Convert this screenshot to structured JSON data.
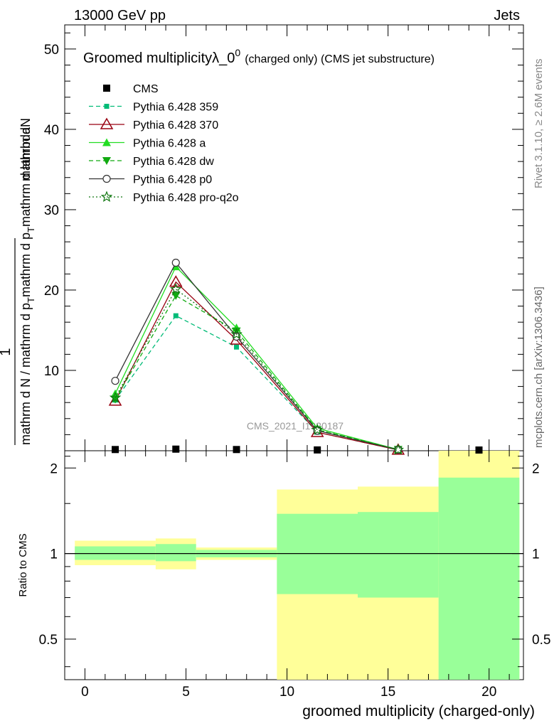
{
  "header": {
    "energy_label": "13000 GeV pp",
    "process_label": "Jets"
  },
  "side": {
    "rivet_label": "Rivet 3.1.10, ≥ 2.6M events",
    "mcplots_label": "mcplots.cern.ch [arXiv:1306.3436]"
  },
  "watermark": "CMS_2021_I1920187",
  "chart_data": [
    {
      "type": "line",
      "title_main": "Groomed multiplicityλ_0",
      "title_sup": "0",
      "title_sub": "(charged only) (CMS jet substructure)",
      "ylabel_top": "mathrm dN",
      "ylabel_bottom": "mathrm d N / mathrm d p",
      "ylabel_lines": [
        "1",
        "mathrm d N / mathrm d p_T mathrm d p_T mathrm d lambda",
        "mathrm dN"
      ],
      "ylabel_full_a": "mathrm d N / mathrm d p",
      "ylabel_full_b": "mathrm d p",
      "ylabel_full_c": "mathrm d lambda",
      "ylabel_sub": "T",
      "xlim": [
        -1,
        21.7
      ],
      "ylim": [
        0,
        53
      ],
      "yticks": [
        10,
        20,
        30,
        40,
        50
      ],
      "legend_position": "top-left",
      "series": [
        {
          "name": "CMS",
          "color": "#000000",
          "marker": "square",
          "line": "none",
          "x": [
            1.5,
            4.5,
            7.5,
            11.5,
            15.5,
            19.5
          ],
          "y": [
            0.15,
            0.2,
            0.15,
            0.1,
            0.05,
            0.02
          ]
        },
        {
          "name": "Pythia 6.428 359",
          "color": "#00bb77",
          "marker": "small-square",
          "line": "dashed",
          "x": [
            1.5,
            4.5,
            7.5,
            11.5,
            15.5
          ],
          "y": [
            6.3,
            16.8,
            12.9,
            2.3,
            0.1
          ]
        },
        {
          "name": "Pythia 6.428 370",
          "color": "#990011",
          "marker": "open-triangle",
          "line": "solid",
          "x": [
            1.5,
            4.5,
            7.5,
            11.5,
            15.5
          ],
          "y": [
            6.2,
            21.0,
            13.8,
            2.3,
            0.1
          ]
        },
        {
          "name": "Pythia 6.428 a",
          "color": "#22dd22",
          "marker": "triangle",
          "line": "solid",
          "x": [
            1.5,
            4.5,
            7.5,
            11.5,
            15.5
          ],
          "y": [
            7.1,
            22.9,
            15.3,
            2.8,
            0.15
          ]
        },
        {
          "name": "Pythia 6.428 dw",
          "color": "#11aa11",
          "marker": "triangle-down",
          "line": "dashed",
          "x": [
            1.5,
            4.5,
            7.5,
            11.5,
            15.5
          ],
          "y": [
            6.4,
            19.3,
            14.9,
            2.6,
            0.15
          ]
        },
        {
          "name": "Pythia 6.428 p0",
          "color": "#333333",
          "marker": "open-circle",
          "line": "solid",
          "x": [
            1.5,
            4.5,
            7.5,
            11.5,
            15.5
          ],
          "y": [
            8.7,
            23.4,
            14.2,
            2.5,
            0.12
          ]
        },
        {
          "name": "Pythia 6.428 pro-q2o",
          "color": "#117711",
          "marker": "star",
          "line": "dotted",
          "x": [
            1.5,
            4.5,
            7.5,
            11.5,
            15.5
          ],
          "y": [
            6.6,
            20.1,
            14.5,
            2.6,
            0.12
          ]
        }
      ]
    },
    {
      "type": "area",
      "ylabel": "Ratio to CMS",
      "xlabel": "groomed multiplicity (charged-only)",
      "xlim": [
        -1,
        21.7
      ],
      "ylim": [
        0.36,
        2.3
      ],
      "yscale": "log",
      "xticks": [
        0,
        5,
        10,
        15,
        20
      ],
      "yticks": [
        0.5,
        1,
        2
      ],
      "reference_line": 1,
      "bands": [
        {
          "x": [
            -0.5,
            3.5
          ],
          "green": [
            0.95,
            1.06
          ],
          "yellow": [
            0.91,
            1.11
          ]
        },
        {
          "x": [
            3.5,
            5.5
          ],
          "green": [
            0.94,
            1.08
          ],
          "yellow": [
            0.88,
            1.13
          ]
        },
        {
          "x": [
            5.5,
            9.5
          ],
          "green": [
            0.97,
            1.03
          ],
          "yellow": [
            0.95,
            1.05
          ]
        },
        {
          "x": [
            9.5,
            13.5
          ],
          "green": [
            0.36,
            1.38
          ],
          "yellow": [
            0.36,
            1.68
          ]
        },
        {
          "x": [
            13.5,
            17.5
          ],
          "green": [
            0.36,
            1.4
          ],
          "yellow": [
            0.36,
            1.72
          ]
        },
        {
          "x": [
            17.5,
            21.5
          ],
          "green": [
            0.36,
            1.85
          ],
          "yellow": [
            0.36,
            2.3
          ]
        }
      ],
      "inner_band_bottoms": [
        {
          "x": [
            9.5,
            13.5
          ],
          "green_bottom": 0.72
        },
        {
          "x": [
            13.5,
            17.5
          ],
          "green_bottom": 0.7
        }
      ]
    }
  ]
}
